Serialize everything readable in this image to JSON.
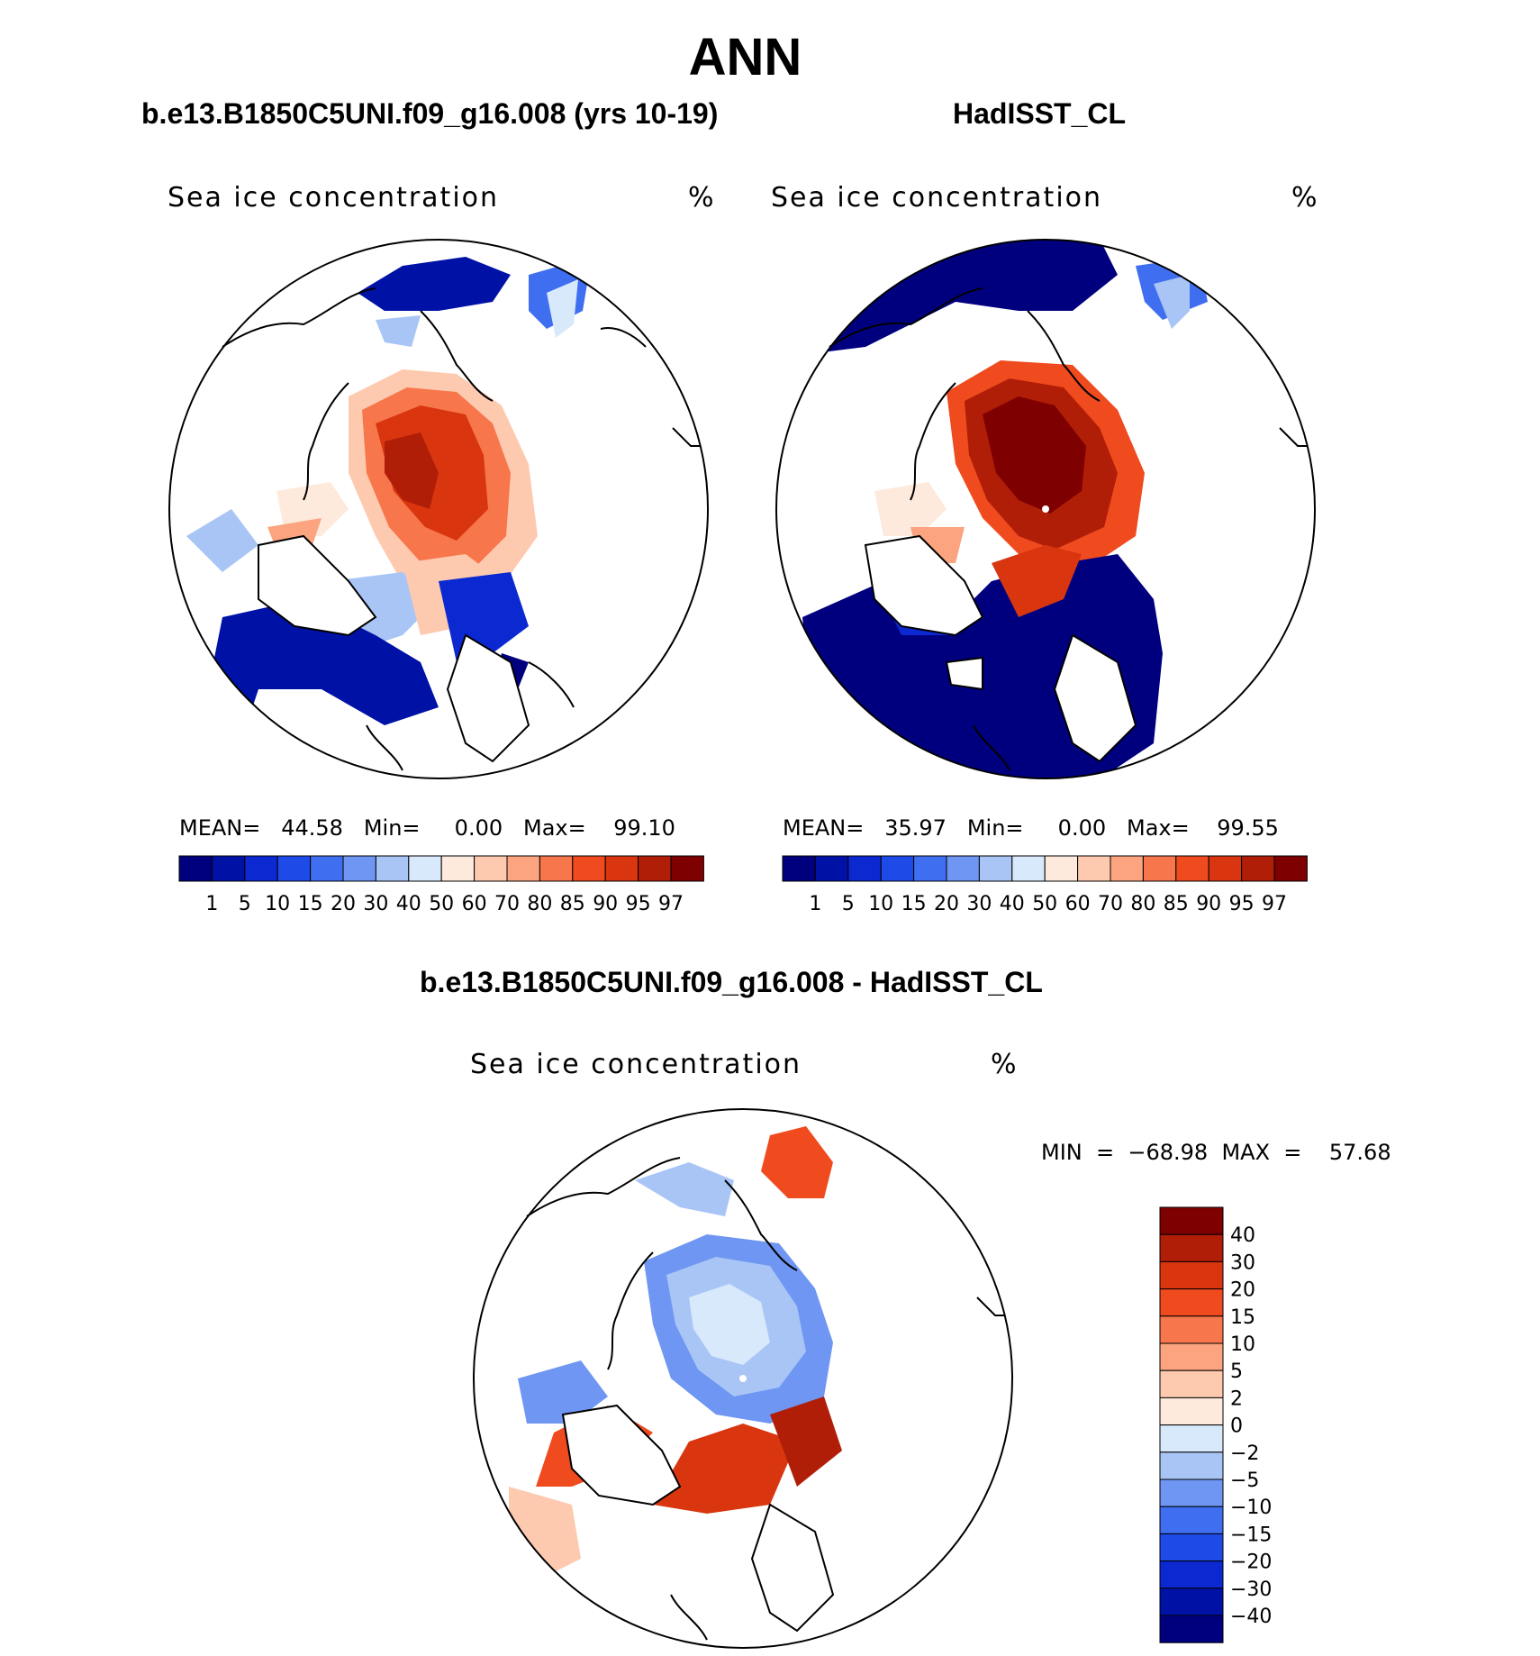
{
  "figure": {
    "title": "ANN",
    "left_panel_title": "b.e13.B1850C5UNI.f09_g16.008 (yrs 10-19)",
    "right_panel_title": "HadISST_CL",
    "diff_panel_title": "b.e13.B1850C5UNI.f09_g16.008 - HadISST_CL"
  },
  "panels": {
    "left": {
      "var_name": "Sea ice concentration",
      "units": "%",
      "stats_line": "MEAN=   44.58   Min=     0.00   Max=    99.10"
    },
    "right": {
      "var_name": "Sea ice concentration",
      "units": "%",
      "stats_line": "MEAN=   35.97   Min=     0.00   Max=    99.55"
    },
    "diff": {
      "var_name": "Sea ice concentration",
      "units": "%",
      "stats_line": "MIN  =  −68.98  MAX  =    57.68"
    }
  },
  "colorbar_main": {
    "colors": [
      "#00007f",
      "#0012a6",
      "#0b28d1",
      "#1e4be8",
      "#3f6ef0",
      "#6e96f2",
      "#a9c5f6",
      "#d7e9fb",
      "#fdeadc",
      "#fdcab0",
      "#fba47f",
      "#f7764b",
      "#f04a1f",
      "#d93610",
      "#b01e08",
      "#7f0000"
    ],
    "labels": [
      "1",
      "5",
      "10",
      "15",
      "20",
      "30",
      "40",
      "50",
      "60",
      "70",
      "80",
      "85",
      "90",
      "95",
      "97"
    ]
  },
  "colorbar_diff": {
    "colors": [
      "#00007f",
      "#0012a6",
      "#0b28d1",
      "#1e4be8",
      "#3f6ef0",
      "#6e96f2",
      "#a9c5f6",
      "#d7e9fb",
      "#fdeadc",
      "#fdcab0",
      "#fba47f",
      "#f7764b",
      "#f04a1f",
      "#d93610",
      "#b01e08",
      "#7f0000"
    ],
    "labels": [
      "40",
      "30",
      "20",
      "15",
      "10",
      "5",
      "2",
      "0",
      "−2",
      "−5",
      "−10",
      "−15",
      "−20",
      "−30",
      "−40"
    ]
  },
  "map_colors": {
    "deep_red": "#b01e08",
    "red": "#e0401a",
    "orange": "#f7764b",
    "salmon": "#fba47f",
    "peach": "#fdcab0",
    "cream": "#fdeadc",
    "navy": "#00007f",
    "blue": "#0b28d1",
    "mid_blue": "#3f6ef0",
    "light_blue": "#a9c5f6",
    "pale_blue": "#d7e9fb"
  }
}
